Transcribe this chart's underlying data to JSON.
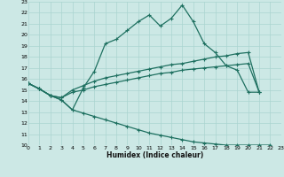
{
  "xlabel": "Humidex (Indice chaleur)",
  "xlim": [
    0,
    23
  ],
  "ylim": [
    10,
    23
  ],
  "xticks": [
    0,
    1,
    2,
    3,
    4,
    5,
    6,
    7,
    8,
    9,
    10,
    11,
    12,
    13,
    14,
    15,
    16,
    17,
    18,
    19,
    20,
    21,
    22,
    23
  ],
  "yticks": [
    10,
    11,
    12,
    13,
    14,
    15,
    16,
    17,
    18,
    19,
    20,
    21,
    22,
    23
  ],
  "bg_color": "#cce8e5",
  "line_color": "#1e7060",
  "grid_color": "#aad4d0",
  "curve1": {
    "x": [
      0,
      1,
      2,
      3,
      4,
      5,
      6,
      7,
      8,
      9,
      10,
      11,
      12,
      13,
      14,
      15,
      16,
      17,
      18,
      19,
      20,
      21
    ],
    "y": [
      15.6,
      15.1,
      14.5,
      14.1,
      13.2,
      15.2,
      16.7,
      19.2,
      19.6,
      20.4,
      21.2,
      21.8,
      20.8,
      21.5,
      22.7,
      21.2,
      19.2,
      18.4,
      17.2,
      16.8,
      14.8,
      14.8
    ]
  },
  "curve2": {
    "x": [
      0,
      1,
      2,
      3,
      4,
      5,
      6,
      7,
      8,
      9,
      10,
      11,
      12,
      13,
      14,
      15,
      16,
      17,
      18,
      19,
      20,
      21
    ],
    "y": [
      15.6,
      15.1,
      14.5,
      14.3,
      15.0,
      15.4,
      15.8,
      16.1,
      16.3,
      16.5,
      16.7,
      16.9,
      17.1,
      17.3,
      17.4,
      17.6,
      17.8,
      18.0,
      18.1,
      18.3,
      18.4,
      14.8
    ]
  },
  "curve3": {
    "x": [
      0,
      1,
      2,
      3,
      4,
      5,
      6,
      7,
      8,
      9,
      10,
      11,
      12,
      13,
      14,
      15,
      16,
      17,
      18,
      19,
      20,
      21
    ],
    "y": [
      15.6,
      15.1,
      14.5,
      14.3,
      14.8,
      15.0,
      15.3,
      15.5,
      15.7,
      15.9,
      16.1,
      16.3,
      16.5,
      16.6,
      16.8,
      16.9,
      17.0,
      17.1,
      17.2,
      17.3,
      17.4,
      14.8
    ]
  },
  "curve4": {
    "x": [
      0,
      1,
      2,
      3,
      4,
      5,
      6,
      7,
      8,
      9,
      10,
      11,
      12,
      13,
      14,
      15,
      16,
      17,
      18,
      19,
      20,
      21,
      22,
      23
    ],
    "y": [
      15.6,
      15.1,
      14.5,
      14.1,
      13.2,
      12.9,
      12.6,
      12.3,
      12.0,
      11.7,
      11.4,
      11.1,
      10.9,
      10.7,
      10.5,
      10.3,
      10.2,
      10.1,
      10.0,
      10.0,
      10.0,
      10.0,
      10.0,
      9.7
    ]
  }
}
